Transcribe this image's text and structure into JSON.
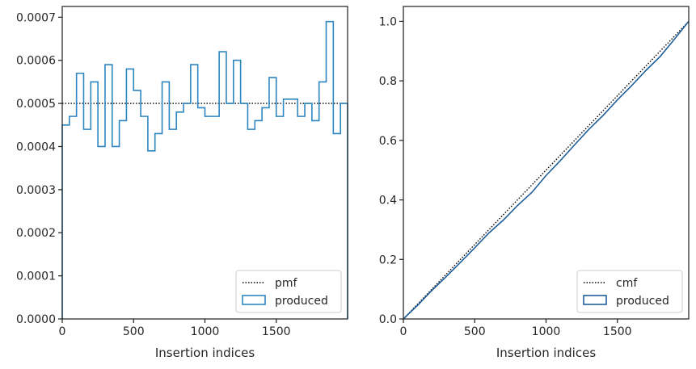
{
  "chart_data": [
    {
      "type": "histogram",
      "xlabel": "Insertion indices",
      "ylabel": "",
      "xlim": [
        0,
        2000
      ],
      "ylim": [
        0,
        0.000725
      ],
      "xticks": [
        0,
        500,
        1000,
        1500
      ],
      "xtick_labels": [
        "0",
        "500",
        "1000",
        "1500"
      ],
      "yticks": [
        0,
        0.0001,
        0.0002,
        0.0003,
        0.0004,
        0.0005,
        0.0006,
        0.0007
      ],
      "ytick_labels": [
        "0.0000",
        "0.0001",
        "0.0002",
        "0.0003",
        "0.0004",
        "0.0005",
        "0.0006",
        "0.0007"
      ],
      "grid": false,
      "legend_position": "lower-right",
      "bin_edges": [
        0,
        50,
        100,
        150,
        200,
        250,
        300,
        350,
        400,
        450,
        500,
        550,
        600,
        650,
        700,
        750,
        800,
        850,
        900,
        950,
        1000,
        1050,
        1100,
        1150,
        1200,
        1250,
        1300,
        1350,
        1400,
        1450,
        1500,
        1550,
        1600,
        1650,
        1700,
        1750,
        1800,
        1850,
        1900,
        1950,
        2000
      ],
      "series": [
        {
          "name": "pmf",
          "style": "dotted",
          "color": "#000000",
          "x": [
            0,
            2000
          ],
          "values": [
            0.0005,
            0.0005
          ]
        },
        {
          "name": "produced",
          "style": "step",
          "color": "#2e86c1",
          "values": [
            0.00045,
            0.00047,
            0.00057,
            0.00044,
            0.00055,
            0.0004,
            0.00059,
            0.0004,
            0.00046,
            0.00058,
            0.00053,
            0.00047,
            0.00039,
            0.00043,
            0.00055,
            0.00044,
            0.00048,
            0.0005,
            0.00059,
            0.00049,
            0.00047,
            0.00047,
            0.00062,
            0.0005,
            0.0006,
            0.0005,
            0.00044,
            0.00046,
            0.00049,
            0.00056,
            0.00047,
            0.00051,
            0.00051,
            0.00047,
            0.0005,
            0.00046,
            0.00055,
            0.00069,
            0.00043,
            0.0005
          ]
        }
      ]
    },
    {
      "type": "line",
      "xlabel": "Insertion indices",
      "ylabel": "",
      "xlim": [
        0,
        2000
      ],
      "ylim": [
        0,
        1.05
      ],
      "xticks": [
        0,
        500,
        1000,
        1500
      ],
      "xtick_labels": [
        "0",
        "500",
        "1000",
        "1500"
      ],
      "yticks": [
        0,
        0.2,
        0.4,
        0.6,
        0.8,
        1.0
      ],
      "ytick_labels": [
        "0.0",
        "0.2",
        "0.4",
        "0.6",
        "0.8",
        "1.0"
      ],
      "grid": false,
      "legend_position": "lower-right",
      "series": [
        {
          "name": "cmf",
          "style": "dotted",
          "color": "#000000",
          "x": [
            0,
            2000
          ],
          "values": [
            0,
            1.0
          ]
        },
        {
          "name": "produced",
          "style": "step",
          "color": "#1f5f99",
          "x": [
            0,
            100,
            200,
            300,
            400,
            500,
            600,
            700,
            800,
            900,
            1000,
            1100,
            1200,
            1300,
            1400,
            1500,
            1600,
            1700,
            1800,
            1900,
            2000
          ],
          "values": [
            0,
            0.046,
            0.096,
            0.142,
            0.19,
            0.239,
            0.289,
            0.332,
            0.381,
            0.425,
            0.482,
            0.532,
            0.585,
            0.637,
            0.684,
            0.736,
            0.784,
            0.835,
            0.882,
            0.94,
            1.0
          ]
        }
      ]
    }
  ]
}
